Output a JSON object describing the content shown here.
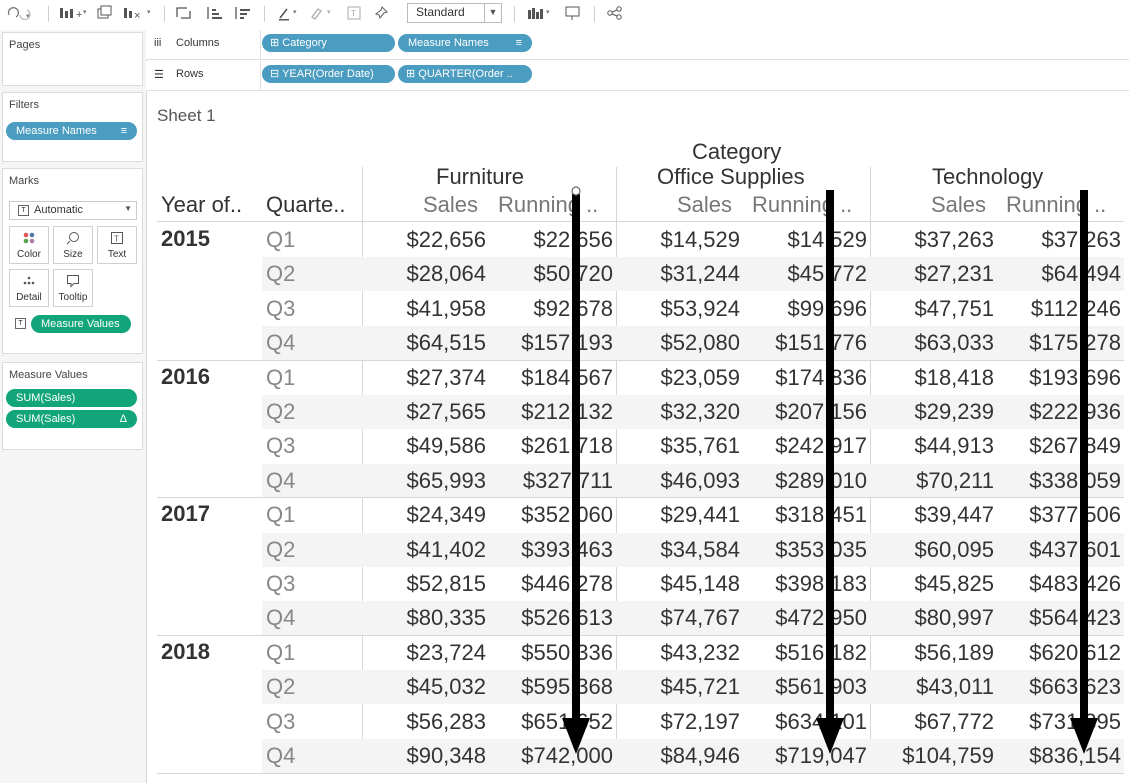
{
  "toolbar": {
    "fit_label": "Standard"
  },
  "left_pane": {
    "pages_title": "Pages",
    "filters_title": "Filters",
    "filters": [
      {
        "label": "Measure Names"
      }
    ],
    "marks_title": "Marks",
    "mark_type": "Automatic",
    "mark_buttons": [
      {
        "label": "Color"
      },
      {
        "label": "Size"
      },
      {
        "label": "Text"
      },
      {
        "label": "Detail"
      },
      {
        "label": "Tooltip"
      }
    ],
    "marks_pill": "Measure Values",
    "measure_values_title": "Measure Values",
    "measure_values": [
      {
        "label": "SUM(Sales)",
        "delta": ""
      },
      {
        "label": "SUM(Sales)",
        "delta": "Δ"
      }
    ]
  },
  "shelves": {
    "columns_label": "Columns",
    "columns": [
      {
        "label": "Category",
        "prefix": "⊞"
      },
      {
        "label": "Measure Names",
        "suffix": "≡"
      }
    ],
    "rows_label": "Rows",
    "rows": [
      {
        "label": "YEAR(Order Date)",
        "prefix": "⊟"
      },
      {
        "label": "QUARTER(Order ..",
        "prefix": "⊞"
      }
    ]
  },
  "sheet": {
    "title": "Sheet 1",
    "column_header_title": "Category",
    "row_headers": {
      "year": "Year of..",
      "quarter": "Quarte.."
    },
    "categories": [
      "Furniture",
      "Office Supplies",
      "Technology"
    ],
    "measures": [
      "Sales",
      "Running .."
    ],
    "rows": [
      {
        "year": "2015",
        "quarter": "Q1",
        "values": [
          "$22,656",
          "$22,656",
          "$14,529",
          "$14,529",
          "$37,263",
          "$37,263"
        ]
      },
      {
        "year": "",
        "quarter": "Q2",
        "values": [
          "$28,064",
          "$50,720",
          "$31,244",
          "$45,772",
          "$27,231",
          "$64,494"
        ]
      },
      {
        "year": "",
        "quarter": "Q3",
        "values": [
          "$41,958",
          "$92,678",
          "$53,924",
          "$99,696",
          "$47,751",
          "$112,246"
        ]
      },
      {
        "year": "",
        "quarter": "Q4",
        "values": [
          "$64,515",
          "$157,193",
          "$52,080",
          "$151,776",
          "$63,033",
          "$175,278"
        ]
      },
      {
        "year": "2016",
        "quarter": "Q1",
        "values": [
          "$27,374",
          "$184,567",
          "$23,059",
          "$174,836",
          "$18,418",
          "$193,696"
        ]
      },
      {
        "year": "",
        "quarter": "Q2",
        "values": [
          "$27,565",
          "$212,132",
          "$32,320",
          "$207,156",
          "$29,239",
          "$222,936"
        ]
      },
      {
        "year": "",
        "quarter": "Q3",
        "values": [
          "$49,586",
          "$261,718",
          "$35,761",
          "$242,917",
          "$44,913",
          "$267,849"
        ]
      },
      {
        "year": "",
        "quarter": "Q4",
        "values": [
          "$65,993",
          "$327,711",
          "$46,093",
          "$289,010",
          "$70,211",
          "$338,059"
        ]
      },
      {
        "year": "2017",
        "quarter": "Q1",
        "values": [
          "$24,349",
          "$352,060",
          "$29,441",
          "$318,451",
          "$39,447",
          "$377,506"
        ]
      },
      {
        "year": "",
        "quarter": "Q2",
        "values": [
          "$41,402",
          "$393,463",
          "$34,584",
          "$353,035",
          "$60,095",
          "$437,601"
        ]
      },
      {
        "year": "",
        "quarter": "Q3",
        "values": [
          "$52,815",
          "$446,278",
          "$45,148",
          "$398,183",
          "$45,825",
          "$483,426"
        ]
      },
      {
        "year": "",
        "quarter": "Q4",
        "values": [
          "$80,335",
          "$526,613",
          "$74,767",
          "$472,950",
          "$80,997",
          "$564,423"
        ]
      },
      {
        "year": "2018",
        "quarter": "Q1",
        "values": [
          "$23,724",
          "$550,336",
          "$43,232",
          "$516,182",
          "$56,189",
          "$620,612"
        ]
      },
      {
        "year": "",
        "quarter": "Q2",
        "values": [
          "$45,032",
          "$595,368",
          "$45,721",
          "$561,903",
          "$43,011",
          "$663,623"
        ]
      },
      {
        "year": "",
        "quarter": "Q3",
        "values": [
          "$56,283",
          "$651,652",
          "$72,197",
          "$634,101",
          "$67,772",
          "$731,395"
        ]
      },
      {
        "year": "",
        "quarter": "Q4",
        "values": [
          "$90,348",
          "$742,000",
          "$84,946",
          "$719,047",
          "$104,759",
          "$836,154"
        ]
      }
    ]
  },
  "colors": {
    "pill_blue": "#4a9cc0",
    "pill_green": "#13a57a",
    "arrow": "#000000"
  }
}
